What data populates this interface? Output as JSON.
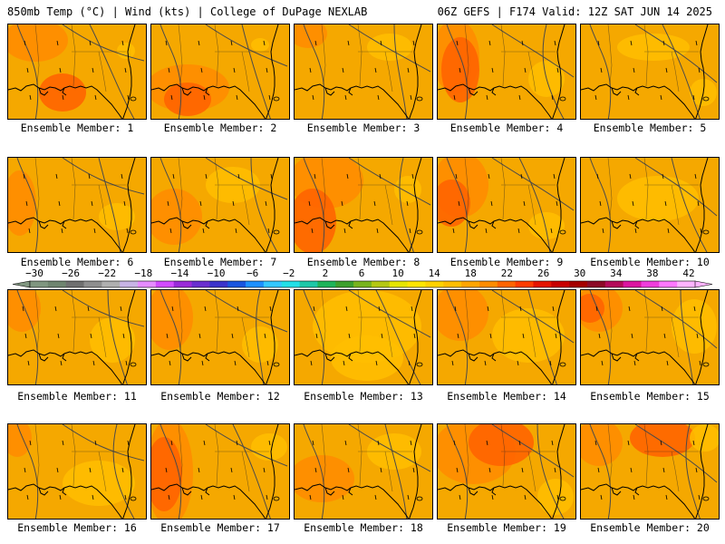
{
  "header": {
    "left": "850mb Temp (°C) | Wind (kts) | College of DuPage NEXLAB",
    "right": "06Z GEFS | F174 Valid: 12Z SAT JUN 14 2025"
  },
  "colorbar": {
    "labels": [
      "−30",
      "−26",
      "−22",
      "−18",
      "−14",
      "−10",
      "−6",
      "−2",
      "2",
      "6",
      "10",
      "14",
      "18",
      "22",
      "26",
      "30",
      "34",
      "38",
      "42"
    ],
    "colors": [
      "#809680",
      "#708570",
      "#707070",
      "#8f8f8f",
      "#b0b0b0",
      "#c8b4e6",
      "#e68cff",
      "#d24bff",
      "#9a2bd9",
      "#6a2fd0",
      "#3a33cc",
      "#1a55e0",
      "#1e90ff",
      "#34c8ff",
      "#22e0e8",
      "#1ec8a8",
      "#1eb45a",
      "#3ca02d",
      "#78b41e",
      "#b4c814",
      "#e6e600",
      "#ffe600",
      "#ffd200",
      "#ffbe00",
      "#ffa500",
      "#ff8c00",
      "#ff6400",
      "#ff3c00",
      "#e61400",
      "#c80000",
      "#a50000",
      "#8c0a28",
      "#b40a5a",
      "#dc14a0",
      "#f03cdc",
      "#ff78ff",
      "#ffb4ff"
    ]
  },
  "members": [
    {
      "label": "Ensemble Member: 1"
    },
    {
      "label": "Ensemble Member: 2"
    },
    {
      "label": "Ensemble Member: 3"
    },
    {
      "label": "Ensemble Member: 4"
    },
    {
      "label": "Ensemble Member: 5"
    },
    {
      "label": "Ensemble Member: 6"
    },
    {
      "label": "Ensemble Member: 7"
    },
    {
      "label": "Ensemble Member: 8"
    },
    {
      "label": "Ensemble Member: 9"
    },
    {
      "label": "Ensemble Member: 10"
    },
    {
      "label": "Ensemble Member: 11"
    },
    {
      "label": "Ensemble Member: 12"
    },
    {
      "label": "Ensemble Member: 13"
    },
    {
      "label": "Ensemble Member: 14"
    },
    {
      "label": "Ensemble Member: 15"
    },
    {
      "label": "Ensemble Member: 16"
    },
    {
      "label": "Ensemble Member: 17"
    },
    {
      "label": "Ensemble Member: 18"
    },
    {
      "label": "Ensemble Member: 19"
    },
    {
      "label": "Ensemble Member: 20"
    }
  ],
  "map_colors": {
    "temp_warm": "#f5a800",
    "temp_hot": "#ff8c00",
    "temp_hotter": "#ff6400",
    "temp_hottest": "#ff3c00",
    "temp_mild": "#ffbe00",
    "temp_cool": "#ffd200",
    "coastline": "#000000",
    "contour": "#4a4a4a"
  }
}
